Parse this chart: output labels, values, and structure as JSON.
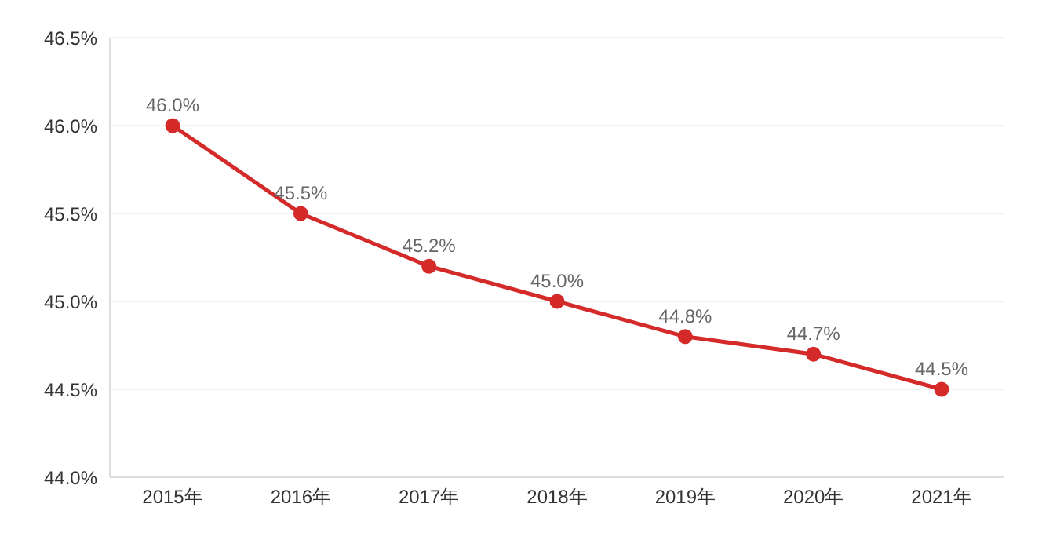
{
  "chart_data": {
    "type": "line",
    "categories": [
      "2015年",
      "2016年",
      "2017年",
      "2018年",
      "2019年",
      "2020年",
      "2021年"
    ],
    "series": [
      {
        "color": "#d42a2a",
        "values": [
          46.0,
          45.5,
          45.2,
          45.0,
          44.8,
          44.7,
          44.5
        ],
        "value_labels": [
          "46.0%",
          "45.5%",
          "45.2%",
          "45.0%",
          "44.8%",
          "44.7%",
          "44.5%"
        ]
      }
    ],
    "ylim": [
      44.0,
      46.5
    ],
    "yticks": [
      {
        "value": 44.0,
        "label": "44.0%"
      },
      {
        "value": 44.5,
        "label": "44.5%"
      },
      {
        "value": 45.0,
        "label": "45.0%"
      },
      {
        "value": 45.5,
        "label": "45.5%"
      },
      {
        "value": 46.0,
        "label": "46.0%"
      },
      {
        "value": 46.5,
        "label": "46.5%"
      }
    ],
    "grid": "y",
    "legend": false,
    "marker": "circle",
    "line_style": "solid"
  }
}
